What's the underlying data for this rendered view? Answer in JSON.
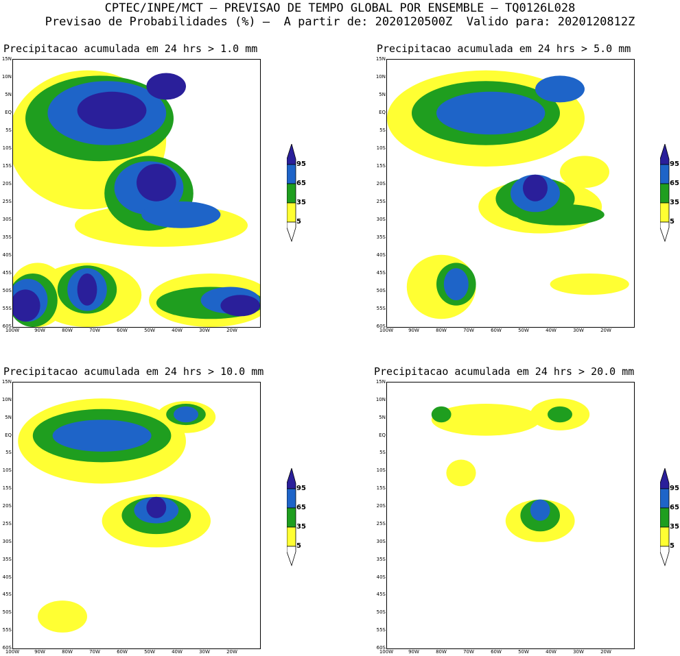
{
  "header": {
    "line1": "CPTEC/INPE/MCT — PREVISAO DE TEMPO GLOBAL POR ENSEMBLE — TQ0126L028",
    "line2": "Previsao de Probabilidades (%) —  A partir de: 2020120500Z  Valido para: 2020120812Z"
  },
  "colors": {
    "p5": "#ffff33",
    "p35": "#1f9e1f",
    "p65": "#1e64c8",
    "p95": "#2a1f9a",
    "lowest": "#ffffff"
  },
  "axes": {
    "lat_labels": [
      "15N",
      "10N",
      "5N",
      "EQ",
      "5S",
      "10S",
      "15S",
      "20S",
      "25S",
      "30S",
      "35S",
      "40S",
      "45S",
      "50S",
      "55S",
      "60S"
    ],
    "lon_labels": [
      "100W",
      "90W",
      "80W",
      "70W",
      "60W",
      "50W",
      "40W",
      "30W",
      "20W"
    ]
  },
  "legend": {
    "labels": [
      "95",
      "65",
      "35",
      "5"
    ]
  },
  "panels": [
    {
      "title": "Precipitacao acumulada em 24 hrs > 1.0 mm"
    },
    {
      "title": "Precipitacao acumulada em 24 hrs > 5.0 mm"
    },
    {
      "title": "Precipitacao acumulada em 24 hrs > 10.0 mm"
    },
    {
      "title": "Precipitacao acumulada em 24 hrs > 20.0 mm"
    }
  ]
}
